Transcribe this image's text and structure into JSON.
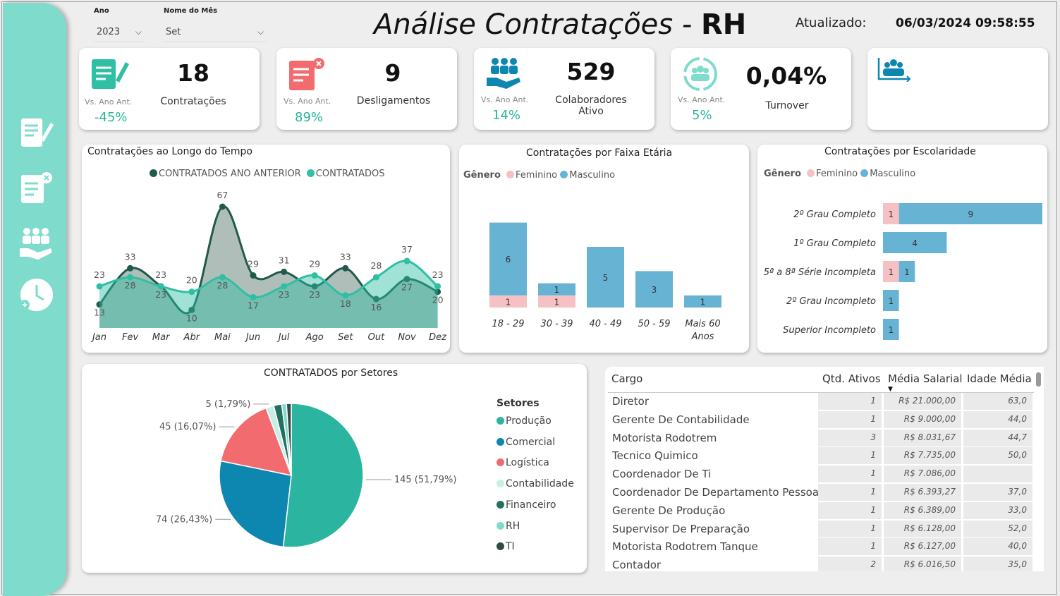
{
  "filters": {
    "ano_label": "Ano",
    "ano_value": "2023",
    "mes_label": "Nome do Mês",
    "mes_value": "Set"
  },
  "header": {
    "title_italic": "Análise Contratações - ",
    "title_bold": "RH",
    "updated_label": "Atualizado:",
    "updated_value": "06/03/2024 09:58:55"
  },
  "sidebar": {
    "items": [
      "contratacoes-icon",
      "desligamentos-icon",
      "colaboradores-icon",
      "turnover-icon"
    ]
  },
  "kpis": [
    {
      "value": "18",
      "label": "Contratações",
      "vs_label": "Vs. Ano Ant.",
      "vs_value": "-45%"
    },
    {
      "value": "9",
      "label": "Desligamentos",
      "vs_label": "Vs. Ano Ant.",
      "vs_value": "89%"
    },
    {
      "value": "529",
      "label": "Colaboradores Ativo",
      "vs_label": "Vs. Ano Ant.",
      "vs_value": "14%"
    },
    {
      "value": "0,04%",
      "label": "Turnover",
      "vs_label": "Vs. Ano Ant.",
      "vs_value": "5%"
    }
  ],
  "colors": {
    "teal": "#2fbfa4",
    "dark_green": "#1f5a4c",
    "blue": "#67b3d3",
    "pink": "#f6c1c3",
    "sidebar": "#7fdccd"
  },
  "chart_data": [
    {
      "type": "line",
      "title": "Contratações ao Longo do Tempo",
      "categories": [
        "Jan",
        "Fev",
        "Mar",
        "Abr",
        "Mai",
        "Jun",
        "Jul",
        "Ago",
        "Set",
        "Out",
        "Nov",
        "Dez"
      ],
      "series": [
        {
          "name": "CONTRATADOS ANO ANTERIOR",
          "values": [
            13,
            33,
            23,
            10,
            67,
            29,
            31,
            23,
            33,
            16,
            27,
            20
          ]
        },
        {
          "name": "CONTRATADOS",
          "values": [
            23,
            28,
            23,
            20,
            28,
            17,
            23,
            29,
            18,
            28,
            37,
            23
          ]
        }
      ]
    },
    {
      "type": "bar",
      "title": "Contratações por Faixa Etária",
      "legend_title": "Gênero",
      "categories": [
        "18 - 29",
        "30 - 39",
        "40 - 49",
        "50 - 59",
        "Mais 60 Anos"
      ],
      "series": [
        {
          "name": "Feminino",
          "values": [
            1,
            1,
            0,
            0,
            0
          ]
        },
        {
          "name": "Masculino",
          "values": [
            6,
            1,
            5,
            3,
            1
          ]
        }
      ]
    },
    {
      "type": "bar",
      "title": "Contratações por Escolaridade",
      "legend_title": "Gênero",
      "categories": [
        "2º Grau Completo",
        "1º Grau Completo",
        "5ª a 8ª Série Incompleta",
        "2º Grau Incompleto",
        "Superior Incompleto"
      ],
      "series": [
        {
          "name": "Feminino",
          "values": [
            1,
            0,
            1,
            0,
            0
          ]
        },
        {
          "name": "Masculino",
          "values": [
            9,
            4,
            1,
            1,
            1
          ]
        }
      ]
    },
    {
      "type": "pie",
      "title": "CONTRATADOS por Setores",
      "legend_title": "Setores",
      "slices": [
        {
          "name": "Produção",
          "value": 145,
          "label": "145 (51,79%)",
          "color": "#2bb5a0"
        },
        {
          "name": "Comercial",
          "value": 74,
          "label": "74 (26,43%)",
          "color": "#0d86b0"
        },
        {
          "name": "Logística",
          "value": 45,
          "label": "45 (16,07%)",
          "color": "#f26b6f"
        },
        {
          "name": "Contabilidade",
          "value": 5,
          "label": "5 (1,79%)",
          "color": "#c8eee6"
        },
        {
          "name": "Financeiro",
          "value": 5,
          "label": "",
          "color": "#24705f"
        },
        {
          "name": "RH",
          "value": 3,
          "label": "",
          "color": "#7fdccd"
        },
        {
          "name": "TI",
          "value": 3,
          "label": "",
          "color": "#314a44"
        }
      ]
    }
  ],
  "table": {
    "columns": [
      "Cargo",
      "Qtd. Ativos",
      "Média Salarial",
      "Idade Média"
    ],
    "rows": [
      [
        "Diretor",
        "1",
        "R$ 21.000,00",
        "63,0"
      ],
      [
        "Gerente De Contabilidade",
        "1",
        "R$ 9.000,00",
        "44,0"
      ],
      [
        "Motorista Rodotrem",
        "3",
        "R$ 8.031,67",
        "44,7"
      ],
      [
        "Tecnico Quimico",
        "1",
        "R$ 7.735,00",
        "50,0"
      ],
      [
        "Coordenador De Ti",
        "1",
        "R$ 7.086,00",
        ""
      ],
      [
        "Coordenador De Departamento Pessoal",
        "1",
        "R$ 6.393,27",
        "37,0"
      ],
      [
        "Gerente De Produção",
        "1",
        "R$ 6.389,00",
        "33,0"
      ],
      [
        "Supervisor De Preparação",
        "1",
        "R$ 6.128,00",
        "52,0"
      ],
      [
        "Motorista Rodotrem Tanque",
        "1",
        "R$ 6.127,00",
        "40,0"
      ],
      [
        "Contador",
        "2",
        "R$ 6.016,50",
        "35,0"
      ]
    ]
  }
}
